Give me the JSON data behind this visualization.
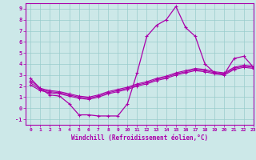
{
  "xlabel": "Windchill (Refroidissement éolien,°C)",
  "ylabel": "",
  "xlim": [
    -0.5,
    23
  ],
  "ylim": [
    -1.5,
    9.5
  ],
  "xticks": [
    0,
    1,
    2,
    3,
    4,
    5,
    6,
    7,
    8,
    9,
    10,
    11,
    12,
    13,
    14,
    15,
    16,
    17,
    18,
    19,
    20,
    21,
    22,
    23
  ],
  "yticks": [
    -1,
    0,
    1,
    2,
    3,
    4,
    5,
    6,
    7,
    8,
    9
  ],
  "bg_color": "#cce8e8",
  "line_color": "#aa00aa",
  "grid_color": "#99cccc",
  "line1_x": [
    0,
    1,
    2,
    3,
    4,
    5,
    6,
    7,
    8,
    9,
    10,
    11,
    12,
    13,
    14,
    15,
    16,
    17,
    18,
    19,
    20,
    21,
    22,
    23
  ],
  "line1_y": [
    2.7,
    1.8,
    1.2,
    1.1,
    0.4,
    -0.6,
    -0.6,
    -0.7,
    -0.7,
    -0.7,
    0.4,
    3.2,
    6.5,
    7.5,
    8.0,
    9.2,
    7.3,
    6.5,
    4.0,
    3.2,
    3.1,
    4.5,
    4.7,
    3.7
  ],
  "line2_x": [
    0,
    1,
    2,
    3,
    4,
    5,
    6,
    7,
    8,
    9,
    10,
    11,
    12,
    13,
    14,
    15,
    16,
    17,
    18,
    19,
    20,
    21,
    22,
    23
  ],
  "line2_y": [
    2.1,
    1.6,
    1.4,
    1.3,
    1.1,
    0.9,
    0.8,
    1.0,
    1.3,
    1.5,
    1.7,
    2.0,
    2.2,
    2.5,
    2.7,
    3.0,
    3.2,
    3.4,
    3.3,
    3.1,
    3.0,
    3.5,
    3.7,
    3.6
  ],
  "line3_x": [
    0,
    1,
    2,
    3,
    4,
    5,
    6,
    7,
    8,
    9,
    10,
    11,
    12,
    13,
    14,
    15,
    16,
    17,
    18,
    19,
    20,
    21,
    22,
    23
  ],
  "line3_y": [
    2.3,
    1.7,
    1.5,
    1.4,
    1.2,
    1.0,
    0.9,
    1.1,
    1.4,
    1.6,
    1.8,
    2.1,
    2.3,
    2.6,
    2.8,
    3.1,
    3.3,
    3.5,
    3.4,
    3.2,
    3.1,
    3.6,
    3.8,
    3.7
  ],
  "line4_x": [
    0,
    1,
    2,
    3,
    4,
    5,
    6,
    7,
    8,
    9,
    10,
    11,
    12,
    13,
    14,
    15,
    16,
    17,
    18,
    19,
    20,
    21,
    22,
    23
  ],
  "line4_y": [
    2.5,
    1.8,
    1.6,
    1.5,
    1.3,
    1.1,
    1.0,
    1.2,
    1.5,
    1.7,
    1.9,
    2.2,
    2.4,
    2.7,
    2.9,
    3.2,
    3.4,
    3.6,
    3.5,
    3.3,
    3.2,
    3.7,
    3.9,
    3.8
  ]
}
